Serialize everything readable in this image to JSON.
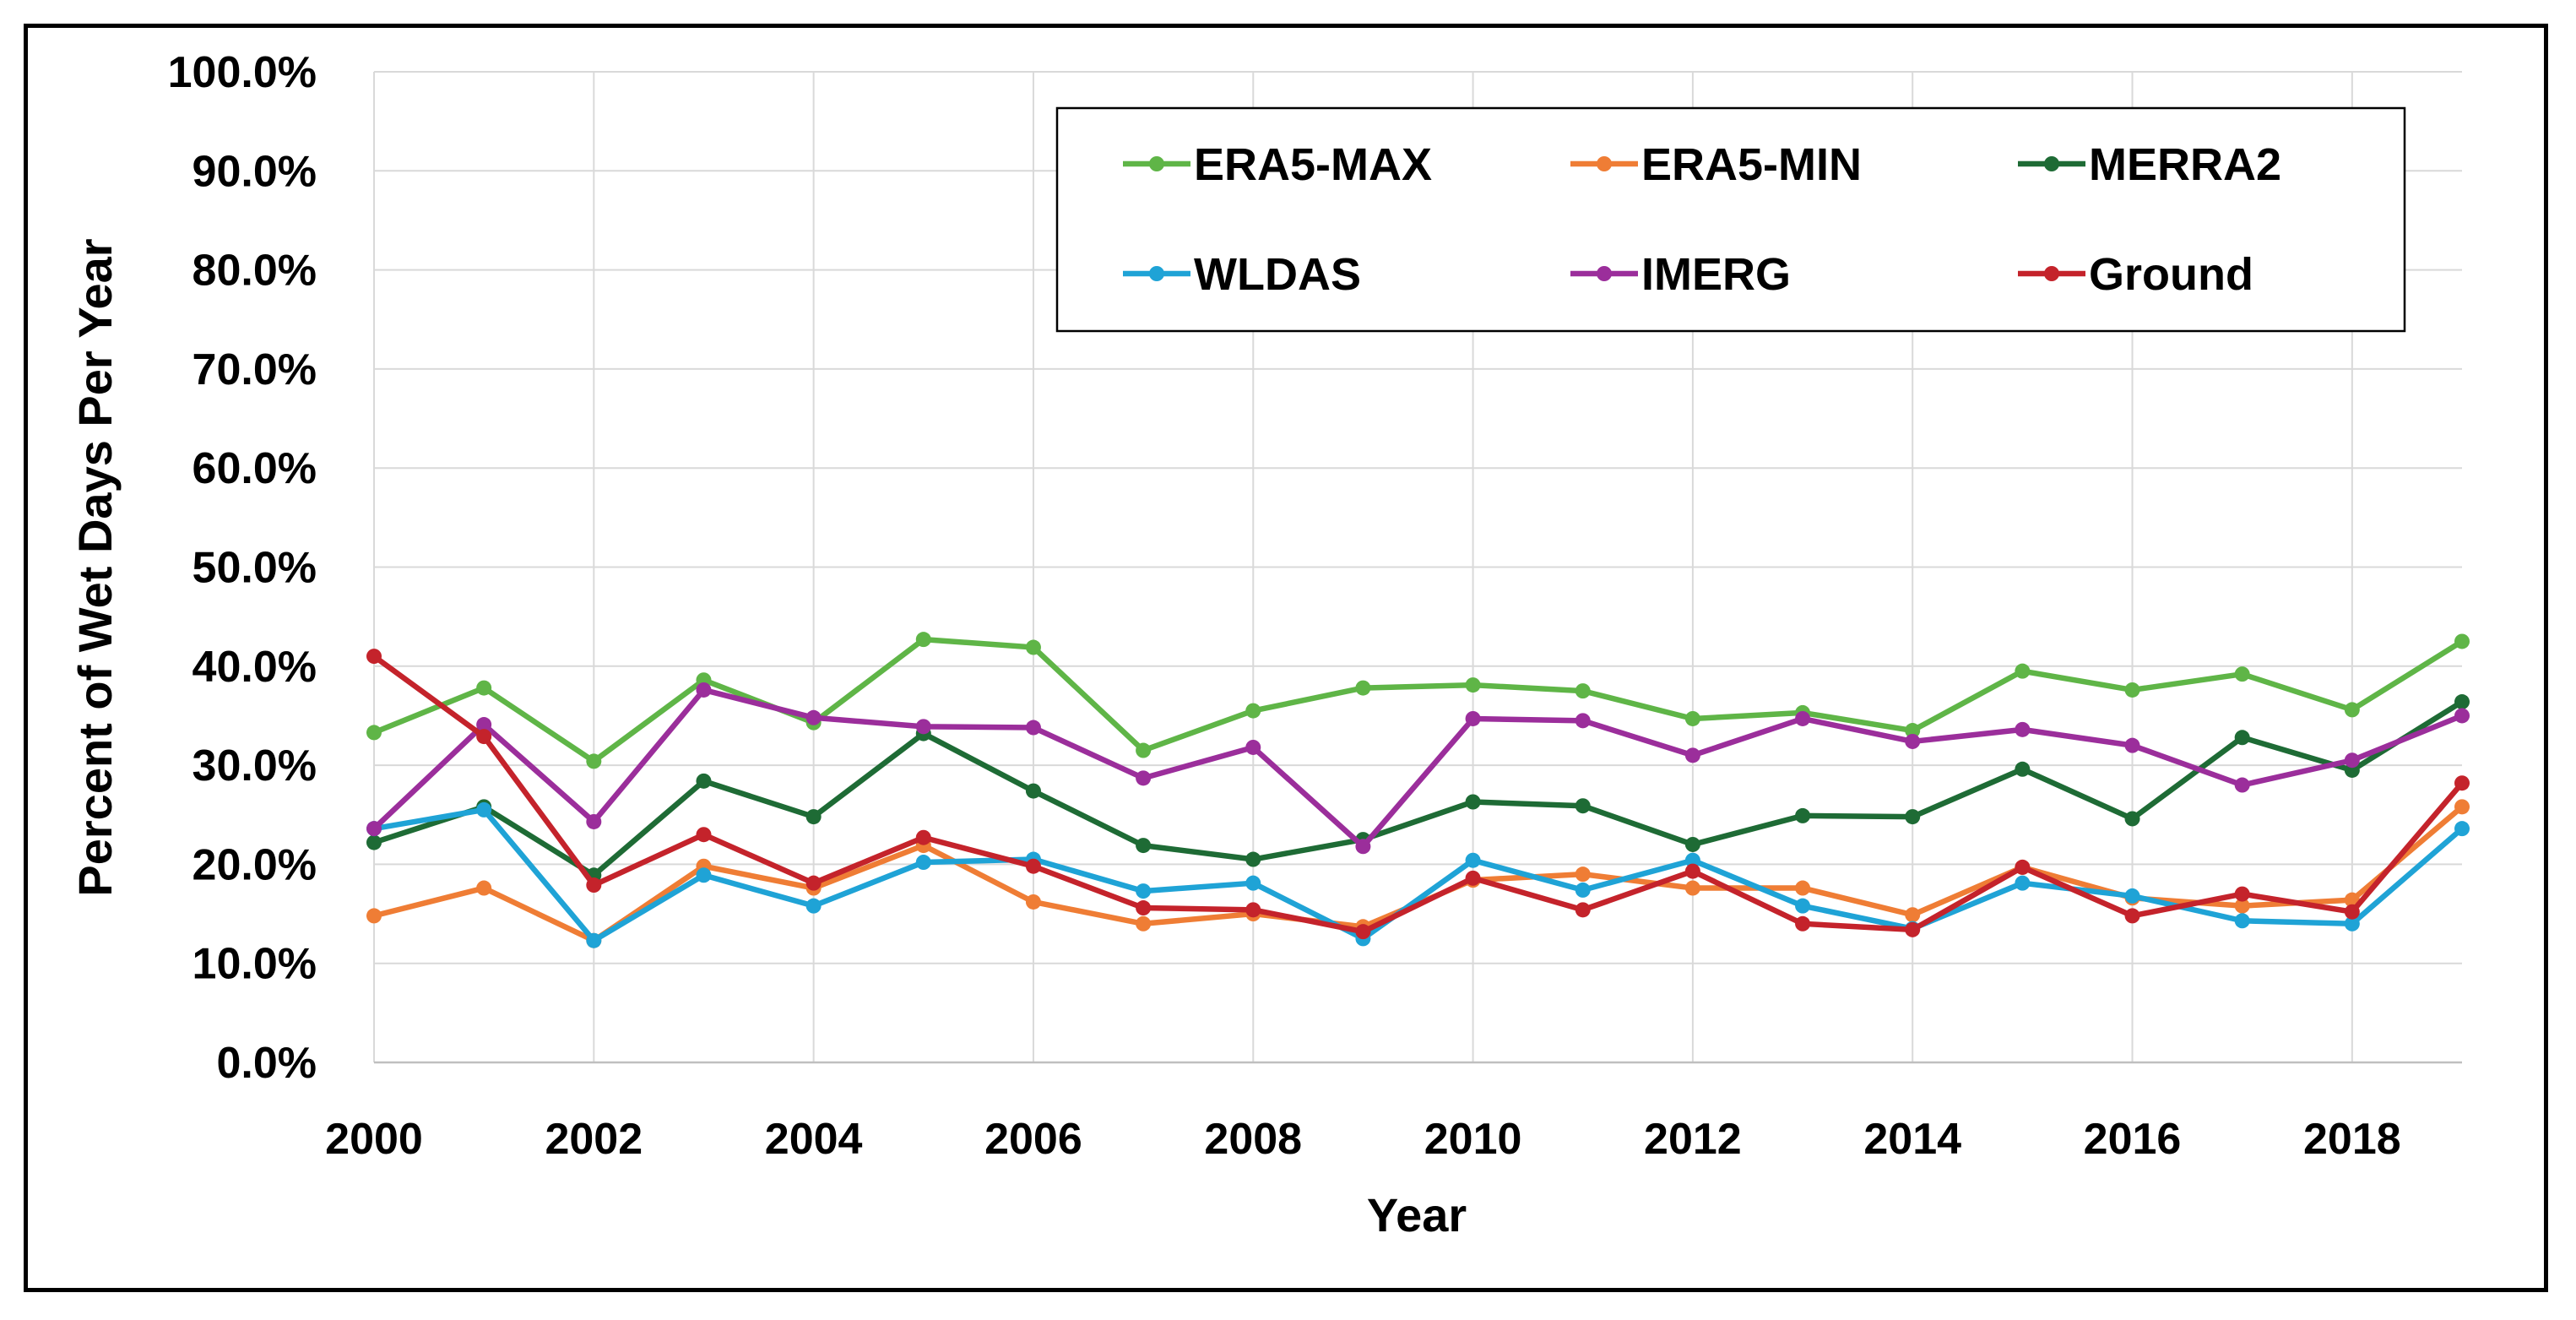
{
  "chart_data": {
    "type": "line",
    "title": "",
    "xlabel": "Year",
    "ylabel": "Percent of Wet Days Per Year",
    "ylim": [
      0,
      100
    ],
    "xlim": [
      2000,
      2019
    ],
    "grid": true,
    "legend_position": "top-right",
    "x": [
      2000,
      2001,
      2002,
      2003,
      2004,
      2005,
      2006,
      2007,
      2008,
      2009,
      2010,
      2011,
      2012,
      2013,
      2014,
      2015,
      2016,
      2017,
      2018,
      2019
    ],
    "x_ticks": [
      "2000",
      "2002",
      "2004",
      "2006",
      "2008",
      "2010",
      "2012",
      "2014",
      "2016",
      "2018"
    ],
    "y_ticks": [
      "0.0%",
      "10.0%",
      "20.0%",
      "30.0%",
      "40.0%",
      "50.0%",
      "60.0%",
      "70.0%",
      "80.0%",
      "90.0%",
      "100.0%"
    ],
    "series": [
      {
        "name": "ERA5-MAX",
        "color": "#5fb547",
        "values": [
          33.3,
          37.8,
          30.4,
          38.6,
          34.3,
          42.7,
          41.9,
          31.5,
          35.5,
          37.8,
          38.1,
          37.5,
          34.7,
          35.3,
          33.5,
          39.5,
          37.6,
          39.2,
          35.6,
          42.5
        ]
      },
      {
        "name": "ERA5-MIN",
        "color": "#ef7d35",
        "values": [
          14.8,
          17.6,
          12.3,
          19.8,
          17.6,
          21.9,
          16.2,
          14.0,
          15.0,
          13.7,
          18.4,
          19.0,
          17.6,
          17.6,
          14.9,
          19.7,
          16.6,
          15.8,
          16.4,
          25.8
        ]
      },
      {
        "name": "MERRA2",
        "color": "#1e6b35",
        "values": [
          22.2,
          25.8,
          18.9,
          28.4,
          24.8,
          33.2,
          27.4,
          21.9,
          20.5,
          22.5,
          26.3,
          25.9,
          22.0,
          24.9,
          24.8,
          29.6,
          24.6,
          32.8,
          29.5,
          36.4
        ]
      },
      {
        "name": "WLDAS",
        "color": "#1fa3d6",
        "values": [
          23.6,
          25.5,
          12.3,
          18.9,
          15.8,
          20.2,
          20.5,
          17.3,
          18.1,
          12.5,
          20.4,
          17.4,
          20.4,
          15.8,
          13.5,
          18.1,
          16.8,
          14.3,
          14.0,
          23.6
        ]
      },
      {
        "name": "IMERG",
        "color": "#9b2e9b",
        "values": [
          23.6,
          34.1,
          24.3,
          37.6,
          34.8,
          33.9,
          33.8,
          28.7,
          31.8,
          21.8,
          34.7,
          34.5,
          31.0,
          34.7,
          32.4,
          33.6,
          32.0,
          28.0,
          30.5,
          35.0
        ]
      },
      {
        "name": "Ground",
        "color": "#c4232b",
        "values": [
          41.0,
          32.9,
          17.9,
          23.0,
          18.1,
          22.7,
          19.8,
          15.6,
          15.4,
          13.2,
          18.6,
          15.4,
          19.3,
          14.0,
          13.4,
          19.7,
          14.8,
          17.0,
          15.2,
          28.2
        ]
      }
    ]
  }
}
